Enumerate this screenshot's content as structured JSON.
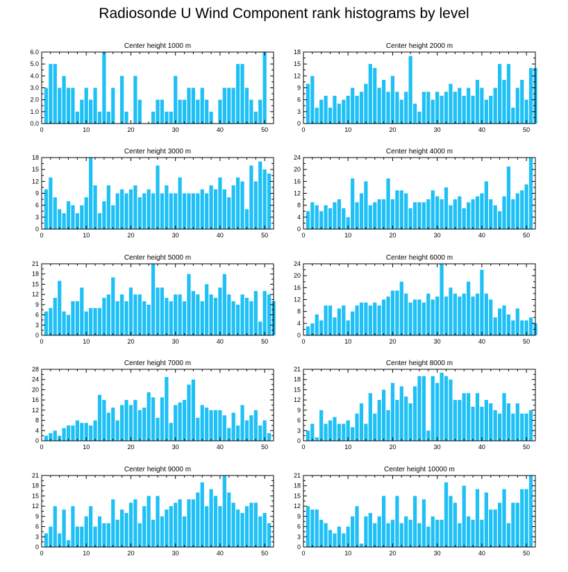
{
  "page": {
    "title": "Radiosonde U Wind Component rank histograms by level",
    "bar_color": "#1ec0f6"
  },
  "chart_data": [
    {
      "type": "bar",
      "title": "Center height 1000 m",
      "xlim": [
        0,
        52
      ],
      "ylim": [
        0,
        6
      ],
      "x_ticks": [
        0,
        10,
        20,
        30,
        40,
        50
      ],
      "y_ticks": [
        0,
        1,
        2,
        3,
        4,
        5,
        6
      ],
      "y_tick_labels": [
        "0.0",
        "1.0",
        "2.0",
        "3.0",
        "4.0",
        "5.0",
        "6.0"
      ],
      "y_labels_side": "left",
      "values": [
        3,
        5,
        5,
        3,
        4,
        3,
        3,
        1,
        2,
        3,
        2,
        3,
        1,
        6,
        1,
        3,
        0,
        4,
        1,
        0,
        4,
        2,
        0,
        0,
        1,
        2,
        2,
        1,
        1,
        4,
        2,
        2,
        3,
        3,
        2,
        3,
        2,
        1,
        0,
        2,
        3,
        3,
        3,
        5,
        5,
        3,
        2,
        1,
        2,
        6
      ]
    },
    {
      "type": "bar",
      "title": "Center height 2000 m",
      "xlim": [
        0,
        52
      ],
      "ylim": [
        0,
        18
      ],
      "x_ticks": [
        0,
        10,
        20,
        30,
        40,
        50
      ],
      "y_ticks": [
        0,
        3,
        6,
        9,
        12,
        15,
        18
      ],
      "y_tick_labels": [
        "0",
        "3",
        "6",
        "9",
        "12",
        "15",
        "18"
      ],
      "y_labels_side": "left",
      "values": [
        10,
        12,
        4,
        6,
        7,
        4,
        7,
        5,
        6,
        7,
        9,
        7,
        8,
        10,
        15,
        14,
        9,
        11,
        8,
        12,
        8,
        6,
        8,
        17,
        5,
        3,
        8,
        8,
        6,
        8,
        7,
        8,
        10,
        8,
        9,
        7,
        9,
        7,
        11,
        9,
        6,
        7,
        9,
        15,
        11,
        15,
        4,
        9,
        11,
        6,
        14,
        14
      ]
    },
    {
      "type": "bar",
      "title": "Center height 3000 m",
      "xlim": [
        0,
        52
      ],
      "ylim": [
        0,
        18
      ],
      "x_ticks": [
        0,
        10,
        20,
        30,
        40,
        50
      ],
      "y_ticks": [
        0,
        3,
        6,
        9,
        12,
        15,
        18
      ],
      "y_tick_labels": [
        "0",
        "3",
        "6",
        "9",
        "12",
        "15",
        "18"
      ],
      "y_labels_side": "left",
      "values": [
        10,
        13,
        8,
        5,
        4,
        7,
        6,
        4,
        6,
        8,
        18,
        11,
        4,
        7,
        11,
        6,
        9,
        10,
        9,
        10,
        11,
        8,
        9,
        10,
        9,
        16,
        9,
        11,
        9,
        9,
        13,
        9,
        9,
        9,
        9,
        10,
        9,
        11,
        10,
        13,
        10,
        8,
        11,
        13,
        12,
        5,
        16,
        12,
        17,
        15,
        14
      ]
    },
    {
      "type": "bar",
      "title": "Center height 4000 m",
      "xlim": [
        0,
        52
      ],
      "ylim": [
        0,
        24
      ],
      "x_ticks": [
        0,
        10,
        20,
        30,
        40,
        50
      ],
      "y_ticks": [
        0,
        4,
        8,
        12,
        16,
        20,
        24
      ],
      "y_tick_labels": [
        "0",
        "4",
        "8",
        "12",
        "16",
        "20",
        "24"
      ],
      "y_labels_side": "right",
      "values": [
        6,
        9,
        8,
        6,
        8,
        7,
        9,
        10,
        7,
        4,
        17,
        9,
        12,
        16,
        8,
        9,
        10,
        10,
        17,
        10,
        13,
        13,
        12,
        7,
        9,
        9,
        9,
        10,
        13,
        11,
        10,
        14,
        8,
        10,
        11,
        7,
        9,
        10,
        11,
        12,
        16,
        10,
        8,
        6,
        11,
        21,
        10,
        12,
        13,
        15,
        24
      ]
    },
    {
      "type": "bar",
      "title": "Center height 5000 m",
      "xlim": [
        0,
        52
      ],
      "ylim": [
        0,
        21
      ],
      "x_ticks": [
        0,
        10,
        20,
        30,
        40,
        50
      ],
      "y_ticks": [
        0,
        3,
        6,
        9,
        12,
        15,
        18,
        21
      ],
      "y_tick_labels": [
        "0",
        "3",
        "6",
        "9",
        "12",
        "15",
        "18",
        "21"
      ],
      "y_labels_side": "left",
      "values": [
        7,
        8,
        11,
        16,
        7,
        6,
        10,
        10,
        14,
        7,
        8,
        8,
        8,
        11,
        12,
        17,
        10,
        12,
        10,
        14,
        12,
        12,
        10,
        9,
        21,
        14,
        14,
        11,
        10,
        12,
        12,
        10,
        18,
        13,
        12,
        10,
        15,
        12,
        11,
        14,
        18,
        12,
        10,
        9,
        12,
        11,
        10,
        13,
        4,
        13,
        12,
        10
      ]
    },
    {
      "type": "bar",
      "title": "Center height 6000 m",
      "xlim": [
        0,
        52
      ],
      "ylim": [
        0,
        24
      ],
      "x_ticks": [
        0,
        10,
        20,
        30,
        40,
        50
      ],
      "y_ticks": [
        0,
        4,
        8,
        12,
        16,
        20,
        24
      ],
      "y_tick_labels": [
        "0",
        "4",
        "8",
        "12",
        "16",
        "20",
        "24"
      ],
      "y_labels_side": "right",
      "values": [
        3,
        4,
        7,
        5,
        10,
        10,
        6,
        9,
        10,
        5,
        8,
        10,
        11,
        11,
        10,
        11,
        10,
        12,
        13,
        15,
        15,
        18,
        14,
        11,
        12,
        12,
        11,
        14,
        12,
        13,
        24,
        13,
        16,
        14,
        13,
        14,
        18,
        13,
        14,
        22,
        14,
        12,
        6,
        9,
        10,
        7,
        5,
        9,
        5,
        5,
        6,
        4
      ]
    },
    {
      "type": "bar",
      "title": "Center height 7000 m",
      "xlim": [
        0,
        52
      ],
      "ylim": [
        0,
        28
      ],
      "x_ticks": [
        0,
        10,
        20,
        30,
        40,
        50
      ],
      "y_ticks": [
        0,
        4,
        8,
        12,
        16,
        20,
        24,
        28
      ],
      "y_tick_labels": [
        "0",
        "4",
        "8",
        "12",
        "16",
        "20",
        "24",
        "28"
      ],
      "y_labels_side": "left",
      "values": [
        2,
        3,
        4,
        2,
        5,
        6,
        6,
        8,
        7,
        7,
        6,
        8,
        18,
        16,
        11,
        13,
        8,
        14,
        16,
        14,
        16,
        12,
        13,
        19,
        17,
        9,
        17,
        25,
        7,
        14,
        15,
        16,
        22,
        24,
        9,
        14,
        13,
        12,
        12,
        12,
        10,
        5,
        11,
        6,
        14,
        8,
        10,
        12,
        6,
        8,
        3
      ]
    },
    {
      "type": "bar",
      "title": "Center height 8000 m",
      "xlim": [
        0,
        52
      ],
      "ylim": [
        0,
        21
      ],
      "x_ticks": [
        0,
        10,
        20,
        30,
        40,
        50
      ],
      "y_ticks": [
        0,
        3,
        6,
        9,
        12,
        15,
        18,
        21
      ],
      "y_tick_labels": [
        "0",
        "3",
        "6",
        "9",
        "12",
        "15",
        "18",
        "21"
      ],
      "y_labels_side": "right",
      "values": [
        3,
        5,
        1,
        9,
        5,
        6,
        7,
        5,
        5,
        6,
        4,
        8,
        11,
        5,
        14,
        8,
        12,
        15,
        9,
        17,
        12,
        16,
        13,
        11,
        16,
        19,
        19,
        3,
        19,
        17,
        20,
        19,
        18,
        12,
        12,
        14,
        14,
        10,
        14,
        10,
        12,
        11,
        9,
        8,
        14,
        11,
        8,
        11,
        8,
        8,
        9
      ]
    },
    {
      "type": "bar",
      "title": "Center height 9000 m",
      "xlim": [
        0,
        52
      ],
      "ylim": [
        0,
        21
      ],
      "x_ticks": [
        0,
        10,
        20,
        30,
        40,
        50
      ],
      "y_ticks": [
        0,
        3,
        6,
        9,
        12,
        15,
        18,
        21
      ],
      "y_tick_labels": [
        "0",
        "3",
        "6",
        "9",
        "12",
        "15",
        "18",
        "21"
      ],
      "y_labels_side": "left",
      "values": [
        4,
        6,
        12,
        4,
        11,
        2,
        12,
        6,
        6,
        9,
        12,
        6,
        9,
        7,
        7,
        14,
        8,
        11,
        10,
        13,
        14,
        7,
        12,
        15,
        8,
        15,
        9,
        11,
        12,
        13,
        14,
        9,
        14,
        14,
        16,
        19,
        12,
        17,
        15,
        12,
        21,
        16,
        13,
        11,
        10,
        12,
        13,
        13,
        9,
        10,
        7
      ]
    },
    {
      "type": "bar",
      "title": "Center height 10000 m",
      "xlim": [
        0,
        52
      ],
      "ylim": [
        0,
        21
      ],
      "x_ticks": [
        0,
        10,
        20,
        30,
        40,
        50
      ],
      "y_ticks": [
        0,
        3,
        6,
        9,
        12,
        15,
        18,
        21
      ],
      "y_tick_labels": [
        "0",
        "3",
        "6",
        "9",
        "12",
        "15",
        "18",
        "21"
      ],
      "y_labels_side": "right",
      "values": [
        12,
        11,
        11,
        8,
        7,
        5,
        4,
        6,
        4,
        6,
        9,
        12,
        1,
        9,
        10,
        7,
        9,
        15,
        7,
        8,
        15,
        7,
        9,
        8,
        15,
        7,
        14,
        6,
        9,
        8,
        8,
        19,
        15,
        13,
        7,
        18,
        9,
        8,
        17,
        8,
        16,
        11,
        11,
        13,
        17,
        7,
        13,
        13,
        17,
        17,
        21
      ]
    }
  ]
}
